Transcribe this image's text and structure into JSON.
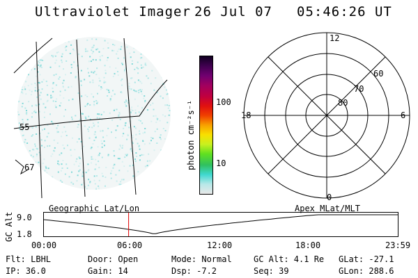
{
  "header": {
    "instrument": "Ultraviolet Imager",
    "date": "26 Jul 07",
    "time": "05:46:26 UT"
  },
  "image_panel": {
    "latitude_labels": [
      "55",
      "67"
    ]
  },
  "colorbar": {
    "unit_label": "photon cm⁻²s⁻¹",
    "ticks": [
      "100",
      "10"
    ],
    "scale": "log",
    "colors": [
      "#e8e8e8",
      "#b8e8e8",
      "#40d8d0",
      "#30c060",
      "#60e020",
      "#c8f020",
      "#f8e000",
      "#f8a000",
      "#f04000",
      "#e01010",
      "#c00040",
      "#a00060",
      "#700070",
      "#400050",
      "#100020"
    ]
  },
  "polar_plot": {
    "mlt_labels": {
      "top": "12",
      "left": "18",
      "right": "6",
      "bottom": "0"
    },
    "mlat_labels": [
      "60",
      "70",
      "80"
    ]
  },
  "altitude_plot": {
    "left_label": "Geographic Lat/Lon",
    "right_label": "Apex MLat/MLT",
    "axis_label": "GC Alt",
    "y_ticks": [
      "9.0",
      "1.8"
    ],
    "x_ticks": [
      "00:00",
      "06:00",
      "12:00",
      "18:00",
      "23:59"
    ],
    "current_time_hours": 5.77,
    "current_marker_color": "#e00000"
  },
  "info": {
    "filter": "Flt: LBHL",
    "door": "Door: Open",
    "mode": "Mode: Normal",
    "gc_alt": "GC Alt: 4.1 Re",
    "glat": "GLat: -27.1",
    "ip": "IP: 36.0",
    "gain": "Gain: 14",
    "dsp": "Dsp:   -7.2",
    "seq": "Seq: 39",
    "glon": "GLon: 288.6"
  }
}
